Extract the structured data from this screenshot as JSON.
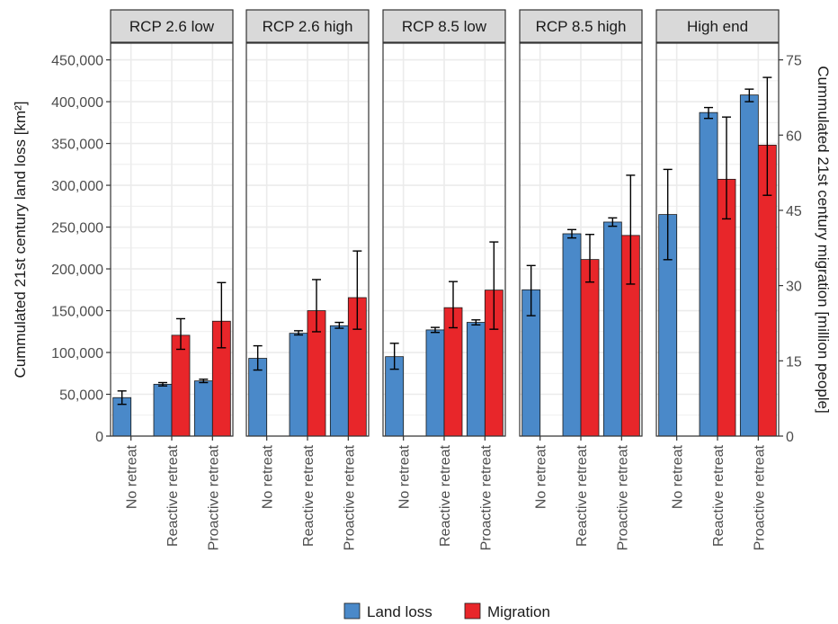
{
  "chart_data": {
    "type": "bar",
    "panels": [
      "RCP 2.6 low",
      "RCP 2.6 high",
      "RCP 8.5 low",
      "RCP 8.5 high",
      "High end"
    ],
    "categories": [
      "No retreat",
      "Reactive retreat",
      "Proactive retreat"
    ],
    "ylabel": "Cummulated 21st century land loss [km²]",
    "y2label": "Cummulated 21st century migration [million people]",
    "ylim": [
      0,
      470000
    ],
    "yticks": [
      0,
      50000,
      100000,
      150000,
      200000,
      250000,
      300000,
      350000,
      400000,
      450000
    ],
    "ytick_labels": [
      "0",
      "50,000",
      "100,000",
      "150,000",
      "200,000",
      "250,000",
      "300,000",
      "350,000",
      "400,000",
      "450,000"
    ],
    "y2lim": [
      0,
      78.33
    ],
    "y2ticks": [
      0,
      15,
      30,
      45,
      60,
      75
    ],
    "y2tick_labels": [
      "0",
      "15",
      "30",
      "45",
      "60",
      "75"
    ],
    "grid": true,
    "legend_position": "bottom",
    "series": [
      {
        "name": "Land loss",
        "color": "#4a89c9",
        "axis": "left",
        "values": [
          [
            46000,
            62000,
            66000
          ],
          [
            93000,
            123000,
            132000
          ],
          [
            95000,
            127000,
            136000
          ],
          [
            175000,
            242000,
            256000
          ],
          [
            265000,
            387000,
            408000
          ]
        ],
        "errors": [
          [
            [
              38000,
              54000
            ],
            [
              60000,
              64000
            ],
            [
              64000,
              68000
            ]
          ],
          [
            [
              79000,
              108000
            ],
            [
              121000,
              126000
            ],
            [
              129000,
              136000
            ]
          ],
          [
            [
              80000,
              111000
            ],
            [
              124000,
              130000
            ],
            [
              133000,
              139000
            ]
          ],
          [
            [
              144000,
              204000
            ],
            [
              237000,
              247000
            ],
            [
              251000,
              261000
            ]
          ],
          [
            [
              211000,
              319000
            ],
            [
              380000,
              393000
            ],
            [
              400000,
              415000
            ]
          ]
        ]
      },
      {
        "name": "Migration",
        "color": "#e8262a",
        "axis": "right",
        "values": [
          [
            null,
            20.1,
            22.9
          ],
          [
            null,
            25.0,
            27.6
          ],
          [
            null,
            25.6,
            29.1
          ],
          [
            null,
            35.2,
            40.0
          ],
          [
            null,
            51.2,
            58.0
          ]
        ],
        "errors": [
          [
            null,
            [
              17.3,
              23.4
            ],
            [
              17.6,
              30.6
            ]
          ],
          [
            null,
            [
              20.8,
              31.2
            ],
            [
              21.3,
              36.9
            ]
          ],
          [
            null,
            [
              21.6,
              30.8
            ],
            [
              21.3,
              38.7
            ]
          ],
          [
            null,
            [
              30.7,
              40.2
            ],
            [
              30.3,
              52.0
            ]
          ],
          [
            null,
            [
              43.3,
              63.6
            ],
            [
              48.0,
              71.5
            ]
          ]
        ]
      }
    ]
  }
}
